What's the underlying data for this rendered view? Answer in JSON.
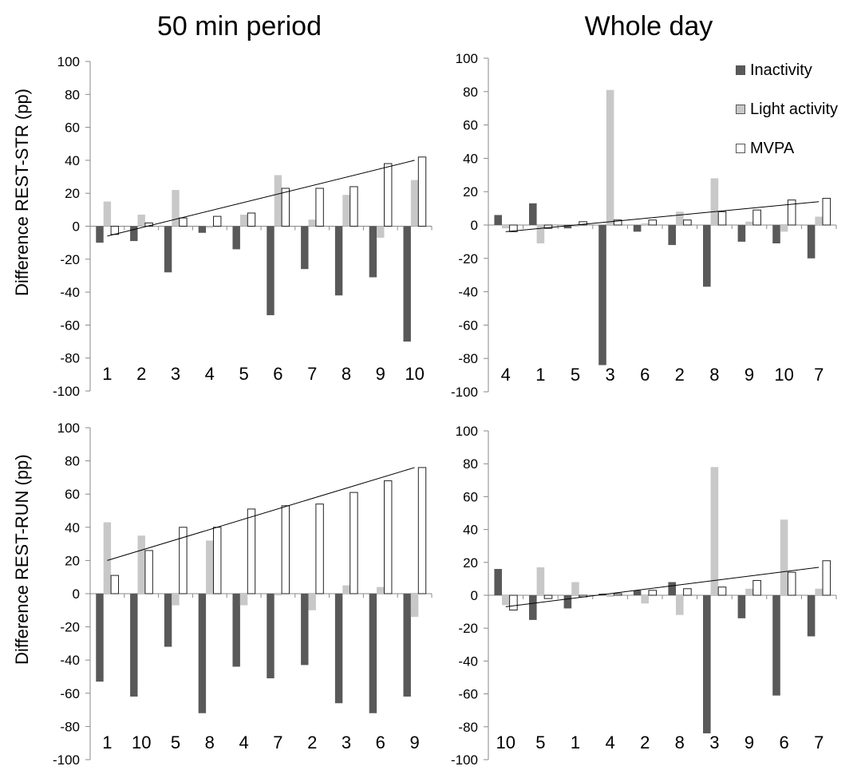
{
  "figure": {
    "column_titles": [
      "50 min period",
      "Whole day"
    ],
    "row_labels": [
      "Difference REST-STR (pp)",
      "Difference REST-RUN (pp)"
    ]
  },
  "legend": {
    "items": [
      {
        "name": "Inactivity",
        "color": "#595959"
      },
      {
        "name": "Light activity",
        "color": "#c8c8c8"
      },
      {
        "name": "MVPA",
        "color": "#ffffff"
      }
    ]
  },
  "chart_data": [
    {
      "type": "bar",
      "panel": "top-left",
      "title": "50 min period",
      "ylabel": "Difference REST-STR (pp)",
      "xlabel": "",
      "ylim": [
        -100,
        100
      ],
      "yticks": [
        -100,
        -80,
        -60,
        -40,
        -20,
        0,
        20,
        40,
        60,
        80,
        100
      ],
      "categories": [
        "1",
        "2",
        "3",
        "4",
        "5",
        "6",
        "7",
        "8",
        "9",
        "10"
      ],
      "series": [
        {
          "name": "Inactivity",
          "values": [
            -10,
            -9,
            -28,
            -4,
            -14,
            -54,
            -26,
            -42,
            -31,
            -70
          ]
        },
        {
          "name": "Light activity",
          "values": [
            15,
            7,
            22,
            -1,
            7,
            31,
            4,
            19,
            -7,
            28
          ]
        },
        {
          "name": "MVPA",
          "values": [
            -5,
            2,
            5,
            6,
            8,
            23,
            23,
            24,
            38,
            42
          ]
        }
      ],
      "trendline": {
        "series": "MVPA",
        "start": -6,
        "end": 40
      }
    },
    {
      "type": "bar",
      "panel": "top-right",
      "title": "Whole day",
      "ylabel": "",
      "xlabel": "",
      "ylim": [
        -100,
        100
      ],
      "yticks": [
        -100,
        -80,
        -60,
        -40,
        -20,
        0,
        20,
        40,
        60,
        80,
        100
      ],
      "categories": [
        "4",
        "1",
        "5",
        "3",
        "6",
        "2",
        "8",
        "9",
        "10",
        "7"
      ],
      "series": [
        {
          "name": "Inactivity",
          "values": [
            6,
            13,
            -2,
            -84,
            -4,
            -12,
            -37,
            -10,
            -11,
            -20
          ]
        },
        {
          "name": "Light activity",
          "values": [
            -2,
            -11,
            -1,
            81,
            1,
            8,
            28,
            2,
            -4,
            5
          ]
        },
        {
          "name": "MVPA",
          "values": [
            -4,
            -2,
            2,
            3,
            3,
            3,
            8,
            9,
            15,
            16
          ]
        }
      ],
      "trendline": {
        "series": "MVPA",
        "start": -4,
        "end": 14
      }
    },
    {
      "type": "bar",
      "panel": "bottom-left",
      "title": "",
      "ylabel": "Difference REST-RUN (pp)",
      "xlabel": "",
      "ylim": [
        -100,
        100
      ],
      "yticks": [
        -100,
        -80,
        -60,
        -40,
        -20,
        0,
        20,
        40,
        60,
        80,
        100
      ],
      "categories": [
        "1",
        "10",
        "5",
        "8",
        "4",
        "7",
        "2",
        "3",
        "6",
        "9"
      ],
      "series": [
        {
          "name": "Inactivity",
          "values": [
            -53,
            -62,
            -32,
            -72,
            -44,
            -51,
            -43,
            -66,
            -72,
            -62
          ]
        },
        {
          "name": "Light activity",
          "values": [
            43,
            35,
            -7,
            32,
            -7,
            -1,
            -10,
            5,
            4,
            -14
          ]
        },
        {
          "name": "MVPA",
          "values": [
            11,
            26,
            40,
            40,
            51,
            53,
            54,
            61,
            68,
            76
          ]
        }
      ],
      "trendline": {
        "series": "MVPA",
        "start": 20,
        "end": 76
      }
    },
    {
      "type": "bar",
      "panel": "bottom-right",
      "title": "",
      "ylabel": "",
      "xlabel": "",
      "ylim": [
        -100,
        100
      ],
      "yticks": [
        -100,
        -80,
        -60,
        -40,
        -20,
        0,
        20,
        40,
        60,
        80,
        100
      ],
      "categories": [
        "10",
        "5",
        "1",
        "4",
        "2",
        "8",
        "3",
        "9",
        "6",
        "7"
      ],
      "series": [
        {
          "name": "Inactivity",
          "values": [
            16,
            -15,
            -8,
            1,
            3,
            8,
            -84,
            -14,
            -61,
            -25
          ]
        },
        {
          "name": "Light activity",
          "values": [
            -6,
            17,
            8,
            -1,
            -5,
            -12,
            78,
            4,
            46,
            4
          ]
        },
        {
          "name": "MVPA",
          "values": [
            -9,
            -2,
            -1,
            1,
            3,
            4,
            5,
            9,
            14,
            21
          ]
        }
      ],
      "trendline": {
        "series": "MVPA",
        "start": -7,
        "end": 17
      }
    }
  ]
}
